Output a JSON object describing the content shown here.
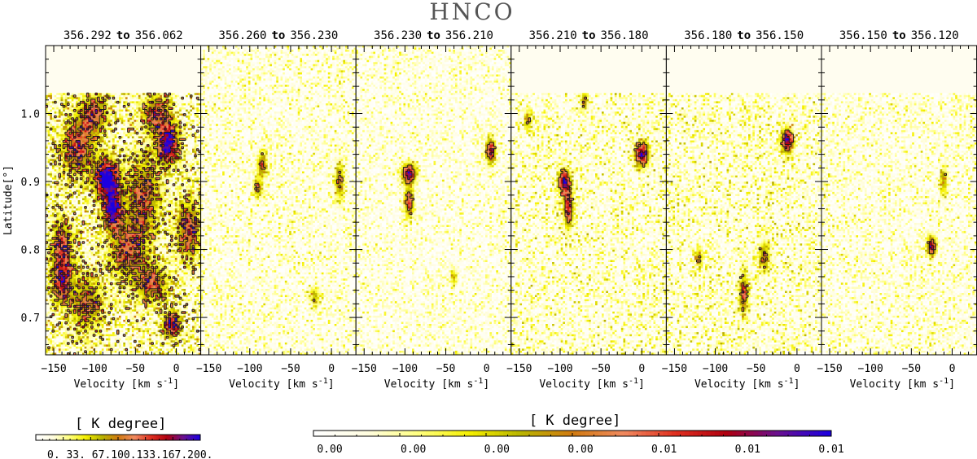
{
  "colors": {
    "background": "#ffffff",
    "colormap": [
      "#ffffff",
      "#fffde0",
      "#ffff80",
      "#f5f000",
      "#b8b400",
      "#d07a10",
      "#f08a60",
      "#e03020",
      "#b00010",
      "#6a1090",
      "#1c00e0"
    ],
    "contour": "#1a1a1a",
    "frame": "#000000",
    "blank": "#fffdf0"
  },
  "chart_data": {
    "type": "heatmap",
    "title": "HNCO",
    "xlabel": "Velocity [km s",
    "xlabel_sup": "-1",
    "xlabel_end": "]",
    "ylabel": "Latitude[°]",
    "xlim": [
      -160,
      30
    ],
    "ylim": [
      0.645,
      1.1
    ],
    "xticks": [
      -150,
      -100,
      -50,
      0
    ],
    "xtick_labels": [
      "−150",
      "−100",
      "−50",
      "0"
    ],
    "yticks": [
      0.7,
      0.8,
      0.9,
      1.0
    ],
    "ytick_labels": [
      "0.7",
      "0.8",
      "0.9",
      "1.0"
    ],
    "panels": [
      {
        "label_from": "356.292",
        "to": "to",
        "label_to": "356.062",
        "blank_above": 1.03,
        "blobs": [
          {
            "v": -85,
            "b": 0.905,
            "sv": 10,
            "sb": 0.018,
            "amp": 1.0
          },
          {
            "v": -78,
            "b": 0.86,
            "sv": 8,
            "sb": 0.02,
            "amp": 0.85
          },
          {
            "v": -10,
            "b": 0.955,
            "sv": 9,
            "sb": 0.02,
            "amp": 0.85
          },
          {
            "v": -5,
            "b": 0.69,
            "sv": 7,
            "sb": 0.012,
            "amp": 0.75
          },
          {
            "v": -120,
            "b": 0.95,
            "sv": 14,
            "sb": 0.03,
            "amp": 0.55
          },
          {
            "v": -140,
            "b": 0.8,
            "sv": 9,
            "sb": 0.03,
            "amp": 0.6
          },
          {
            "v": -140,
            "b": 0.75,
            "sv": 8,
            "sb": 0.02,
            "amp": 0.55
          },
          {
            "v": -60,
            "b": 0.8,
            "sv": 15,
            "sb": 0.03,
            "amp": 0.5
          },
          {
            "v": -40,
            "b": 0.88,
            "sv": 14,
            "sb": 0.04,
            "amp": 0.5
          },
          {
            "v": -30,
            "b": 0.75,
            "sv": 14,
            "sb": 0.02,
            "amp": 0.5
          },
          {
            "v": 15,
            "b": 0.83,
            "sv": 10,
            "sb": 0.03,
            "amp": 0.55
          },
          {
            "v": -100,
            "b": 1.0,
            "sv": 12,
            "sb": 0.02,
            "amp": 0.5
          },
          {
            "v": -25,
            "b": 1.0,
            "sv": 12,
            "sb": 0.02,
            "amp": 0.5
          },
          {
            "v": -110,
            "b": 0.72,
            "sv": 14,
            "sb": 0.03,
            "amp": 0.45
          }
        ],
        "noise": 0.42
      },
      {
        "label_from": "356.260",
        "to": "to",
        "label_to": "356.230",
        "blank_above": 2.0,
        "blobs": [
          {
            "v": -85,
            "b": 0.925,
            "sv": 4,
            "sb": 0.012,
            "amp": 0.55
          },
          {
            "v": -90,
            "b": 0.89,
            "sv": 4,
            "sb": 0.01,
            "amp": 0.45
          },
          {
            "v": 10,
            "b": 0.9,
            "sv": 4,
            "sb": 0.02,
            "amp": 0.45
          },
          {
            "v": -20,
            "b": 0.73,
            "sv": 4,
            "sb": 0.01,
            "amp": 0.35
          }
        ],
        "noise": 0.22
      },
      {
        "label_from": "356.230",
        "to": "to",
        "label_to": "356.210",
        "blank_above": 2.0,
        "blobs": [
          {
            "v": -95,
            "b": 0.912,
            "sv": 6,
            "sb": 0.01,
            "amp": 0.85
          },
          {
            "v": -95,
            "b": 0.87,
            "sv": 4,
            "sb": 0.015,
            "amp": 0.6
          },
          {
            "v": 5,
            "b": 0.945,
            "sv": 4,
            "sb": 0.012,
            "amp": 0.75
          },
          {
            "v": -40,
            "b": 0.76,
            "sv": 3,
            "sb": 0.01,
            "amp": 0.3
          }
        ],
        "noise": 0.2
      },
      {
        "label_from": "356.210",
        "to": "to",
        "label_to": "356.180",
        "blank_above": 1.03,
        "blobs": [
          {
            "v": -95,
            "b": 0.9,
            "sv": 5,
            "sb": 0.012,
            "amp": 0.85
          },
          {
            "v": -90,
            "b": 0.86,
            "sv": 4,
            "sb": 0.02,
            "amp": 0.7
          },
          {
            "v": 0,
            "b": 0.94,
            "sv": 6,
            "sb": 0.012,
            "amp": 0.85
          },
          {
            "v": -140,
            "b": 0.99,
            "sv": 3,
            "sb": 0.01,
            "amp": 0.45
          },
          {
            "v": -70,
            "b": 1.02,
            "sv": 3,
            "sb": 0.01,
            "amp": 0.45
          }
        ],
        "noise": 0.26
      },
      {
        "label_from": "356.180",
        "to": "to",
        "label_to": "356.150",
        "blank_above": 1.03,
        "blobs": [
          {
            "v": -12,
            "b": 0.96,
            "sv": 5,
            "sb": 0.012,
            "amp": 0.85
          },
          {
            "v": -65,
            "b": 0.735,
            "sv": 4,
            "sb": 0.02,
            "amp": 0.55
          },
          {
            "v": -40,
            "b": 0.79,
            "sv": 5,
            "sb": 0.015,
            "amp": 0.45
          },
          {
            "v": -120,
            "b": 0.79,
            "sv": 3,
            "sb": 0.01,
            "amp": 0.4
          }
        ],
        "noise": 0.27
      },
      {
        "label_from": "356.150",
        "to": "to",
        "label_to": "356.120",
        "blank_above": 1.03,
        "blobs": [
          {
            "v": -25,
            "b": 0.805,
            "sv": 4,
            "sb": 0.01,
            "amp": 0.75
          },
          {
            "v": -10,
            "b": 0.9,
            "sv": 3,
            "sb": 0.015,
            "amp": 0.4
          }
        ],
        "noise": 0.22
      }
    ],
    "contour_levels": [
      0.5,
      0.78
    ],
    "colorbars": [
      {
        "label_open": "[",
        "label_text": "K degree]",
        "range": [
          0,
          200
        ],
        "tick_labels": [
          "0.",
          "33.",
          "67.",
          "100.",
          "133.",
          "167.",
          "200."
        ],
        "tick_label_text": "0. 33. 67.100.133.167.200."
      },
      {
        "label_open": "[",
        "label_text": "K degree]",
        "range": [
          0,
          0.012
        ],
        "tick_labels": [
          "0.00",
          "0.00",
          "0.00",
          "0.00",
          "0.01",
          "0.01",
          "0.01"
        ]
      }
    ]
  }
}
